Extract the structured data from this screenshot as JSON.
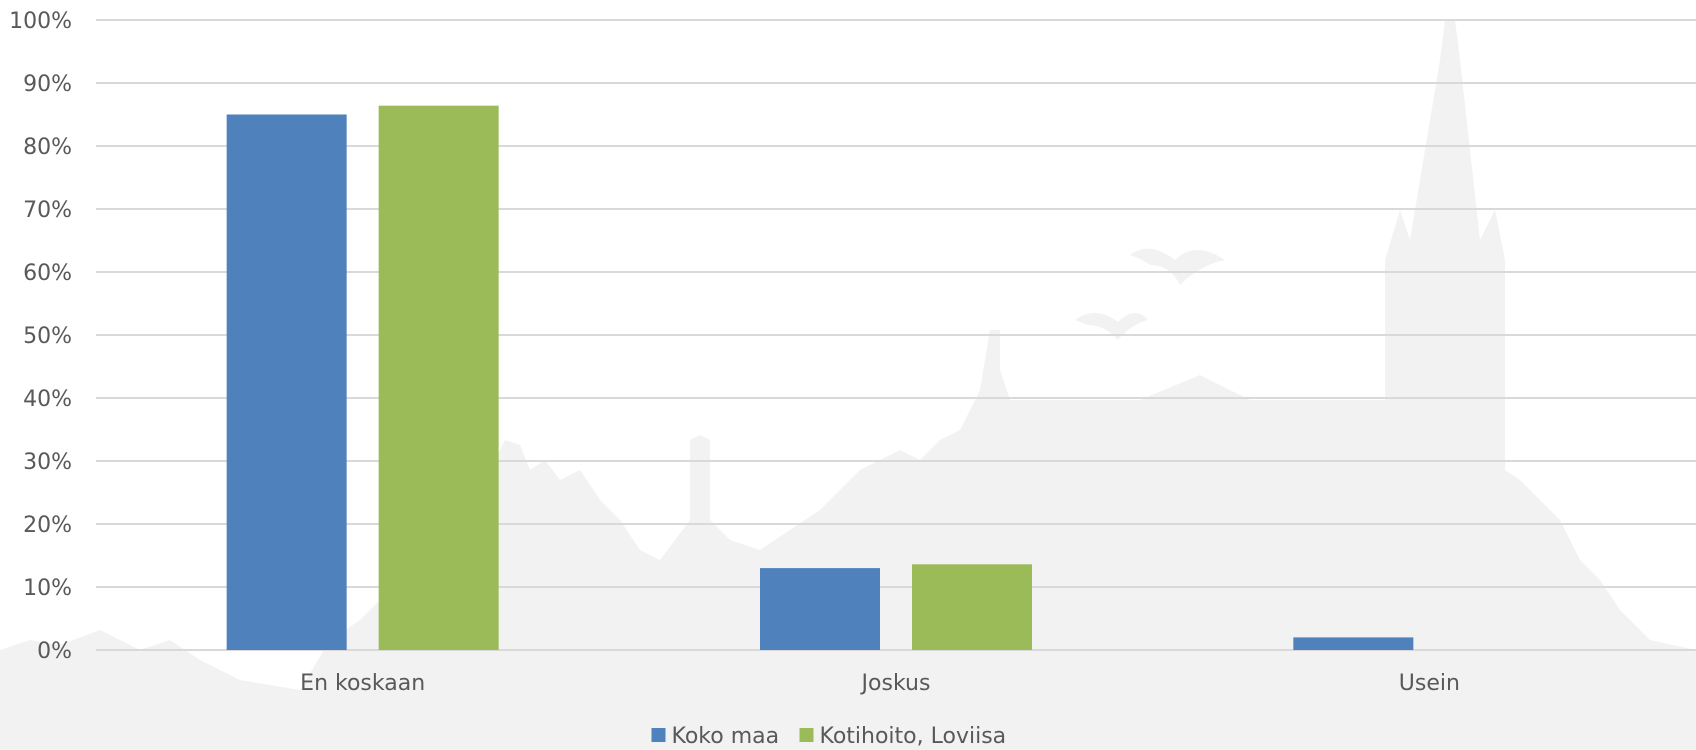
{
  "chart_data": {
    "type": "bar",
    "title": "",
    "xlabel": "",
    "ylabel": "",
    "categories": [
      "En koskaan",
      "Joskus",
      "Usein"
    ],
    "series": [
      {
        "name": "Koko maa",
        "color": "#4F81BD",
        "values": [
          85,
          13,
          2
        ]
      },
      {
        "name": "Kotihoito, Loviisa",
        "color": "#9BBB59",
        "values": [
          86.4,
          13.6,
          0
        ]
      }
    ],
    "ylim": [
      0,
      100
    ],
    "yticks": [
      "0%",
      "10%",
      "20%",
      "30%",
      "40%",
      "50%",
      "60%",
      "70%",
      "80%",
      "90%",
      "100%"
    ],
    "grid": true,
    "legend_position": "bottom",
    "gridline_color": "#D9D9D9",
    "background_watermark": "town-silhouette"
  }
}
